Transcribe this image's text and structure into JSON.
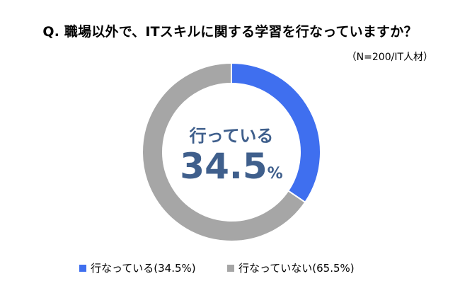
{
  "title": "Q. 職場以外で、ITスキルに関する学習を行なっていますか？",
  "note": "（N=200/IT人材）",
  "center": {
    "caption": "行っている",
    "value": "34.5",
    "unit": "%"
  },
  "legend": [
    {
      "label": "行なっている(34.5%)",
      "color": "#3f6fef"
    },
    {
      "label": "行なっていない(65.5%)",
      "color": "#a6a6a6"
    }
  ],
  "chart_data": {
    "type": "pie",
    "title": "Q. 職場以外で、ITスキルに関する学習を行なっていますか？",
    "categories": [
      "行なっている",
      "行なっていない"
    ],
    "values": [
      34.5,
      65.5
    ],
    "colors": [
      "#3f6fef",
      "#a6a6a6"
    ],
    "donut": true,
    "legend_position": "bottom"
  }
}
